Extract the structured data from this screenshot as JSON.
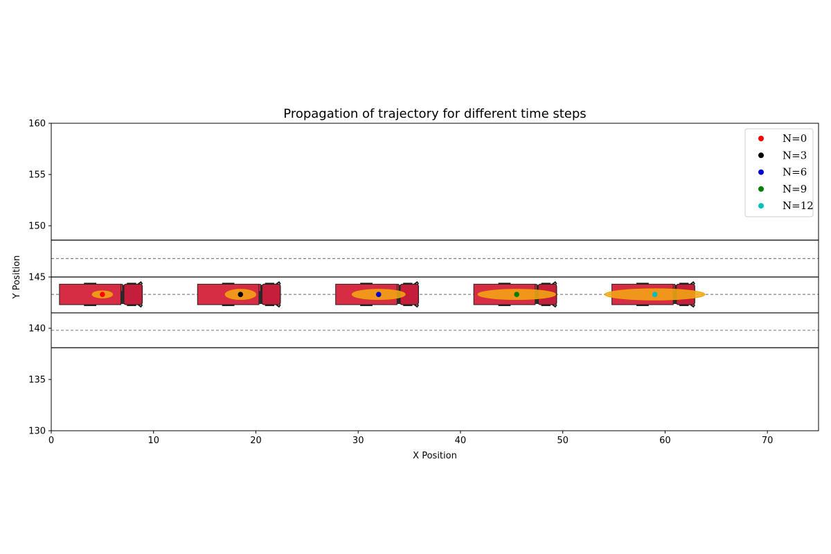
{
  "chart_data": {
    "type": "scatter",
    "title": "Propagation of trajectory for different time steps",
    "xlabel": "X Position",
    "ylabel": "Y Position",
    "xlim": [
      0,
      75
    ],
    "ylim": [
      130,
      160
    ],
    "xticks": [
      0,
      10,
      20,
      30,
      40,
      50,
      60,
      70
    ],
    "yticks": [
      130,
      135,
      140,
      145,
      150,
      155,
      160
    ],
    "grid": false,
    "legend_position": "top-right",
    "lane_lines": {
      "solid_y": [
        148.6,
        145.0,
        141.5,
        138.1
      ],
      "dashed_y": [
        146.8,
        143.3,
        139.8
      ]
    },
    "series": [
      {
        "name": "N=0",
        "color": "#ff0000",
        "x": 5.0,
        "y": 143.3,
        "uncertainty_x": 1.0,
        "uncertainty_y": 0.35
      },
      {
        "name": "N=3",
        "color": "#000000",
        "x": 18.5,
        "y": 143.3,
        "uncertainty_x": 1.5,
        "uncertainty_y": 0.5
      },
      {
        "name": "N=6",
        "color": "#0000cc",
        "x": 32.0,
        "y": 143.3,
        "uncertainty_x": 2.6,
        "uncertainty_y": 0.5
      },
      {
        "name": "N=9",
        "color": "#008000",
        "x": 45.5,
        "y": 143.3,
        "uncertainty_x": 3.8,
        "uncertainty_y": 0.5
      },
      {
        "name": "N=12",
        "color": "#00bfbf",
        "x": 59.0,
        "y": 143.3,
        "uncertainty_x": 4.9,
        "uncertainty_y": 0.55
      }
    ],
    "vehicles": {
      "type": "truck",
      "body_color": "#d62d45",
      "cab_color": "#c41e3a",
      "trailer_length": 6.0,
      "trailer_width": 2.0,
      "trailer_rear_offset": -4.2,
      "cab_length": 1.8,
      "cab_front_offset": 3.9
    }
  }
}
